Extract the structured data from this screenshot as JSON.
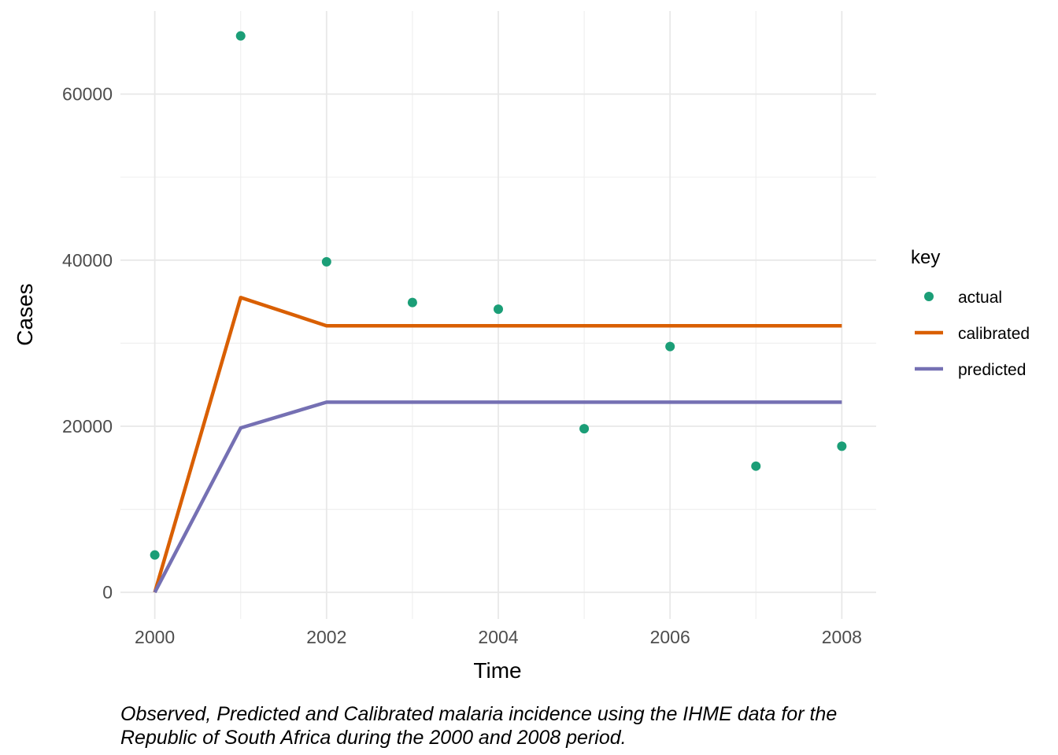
{
  "chart_data": {
    "type": "line",
    "title": "",
    "xlabel": "Time",
    "ylabel": "Cases",
    "xlim": [
      1999.6,
      2008.4
    ],
    "ylim": [
      -3200,
      70000
    ],
    "x_ticks": [
      2000,
      2002,
      2004,
      2006,
      2008
    ],
    "x_tick_labels": [
      "2000",
      "2002",
      "2004",
      "2006",
      "2008"
    ],
    "y_ticks": [
      0,
      20000,
      40000,
      60000
    ],
    "y_tick_labels": [
      "0",
      "20000",
      "40000",
      "60000"
    ],
    "grid": true,
    "legend": {
      "title": "key",
      "position": "right"
    },
    "series": [
      {
        "name": "actual",
        "kind": "points",
        "color": "#1b9e77",
        "x": [
          2000,
          2001,
          2002,
          2003,
          2004,
          2005,
          2006,
          2007,
          2008
        ],
        "y": [
          4500,
          67000,
          39800,
          34900,
          34100,
          19700,
          29600,
          15200,
          17600
        ]
      },
      {
        "name": "calibrated",
        "kind": "line",
        "color": "#d95f02",
        "x": [
          2000,
          2001,
          2002,
          2003,
          2004,
          2005,
          2006,
          2007,
          2008
        ],
        "y": [
          0,
          35500,
          32100,
          32100,
          32100,
          32100,
          32100,
          32100,
          32100
        ]
      },
      {
        "name": "predicted",
        "kind": "line",
        "color": "#7570b3",
        "x": [
          2000,
          2001,
          2002,
          2003,
          2004,
          2005,
          2006,
          2007,
          2008
        ],
        "y": [
          0,
          19800,
          22900,
          22900,
          22900,
          22900,
          22900,
          22900,
          22900
        ]
      }
    ]
  },
  "caption": {
    "line1": "Observed, Predicted and Calibrated malaria incidence using the IHME data for the",
    "line2": "Republic of South Africa during the 2000 and 2008 period."
  }
}
